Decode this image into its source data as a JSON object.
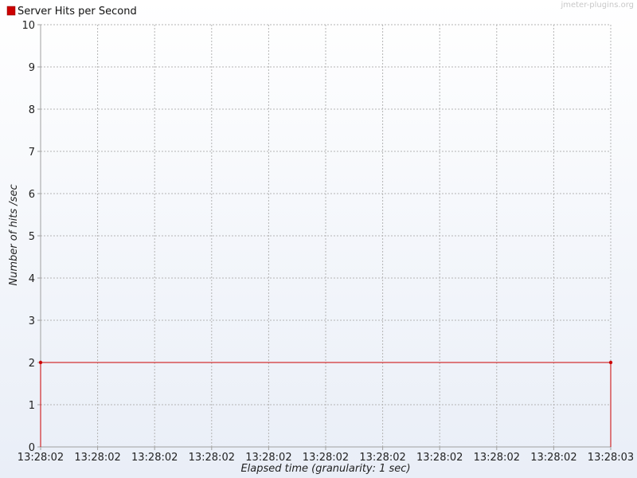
{
  "chart_data": {
    "type": "line",
    "title": "",
    "xlabel": "Elapsed time (granularity: 1 sec)",
    "ylabel": "Number of hits /sec",
    "ylim": [
      0,
      10
    ],
    "y_ticks": [
      "0",
      "1",
      "2",
      "3",
      "4",
      "5",
      "6",
      "7",
      "8",
      "9",
      "10"
    ],
    "x_tick_labels": [
      "13:28:02",
      "13:28:02",
      "13:28:02",
      "13:28:02",
      "13:28:02",
      "13:28:02",
      "13:28:02",
      "13:28:02",
      "13:28:02",
      "13:28:02",
      "13:28:03"
    ],
    "grid": true,
    "legend_position": "top-left",
    "series": [
      {
        "name": "Server Hits per Second",
        "color": "#cc0000",
        "points": [
          {
            "x": "13:28:02",
            "y": 2
          },
          {
            "x": "13:28:03",
            "y": 2
          }
        ]
      }
    ]
  },
  "watermark": "jmeter-plugins.org",
  "colors": {
    "background_top": "#ffffff",
    "background_bottom": "#e9eef7",
    "grid": "#b4b4b4",
    "axis": "#a0a0a0"
  }
}
